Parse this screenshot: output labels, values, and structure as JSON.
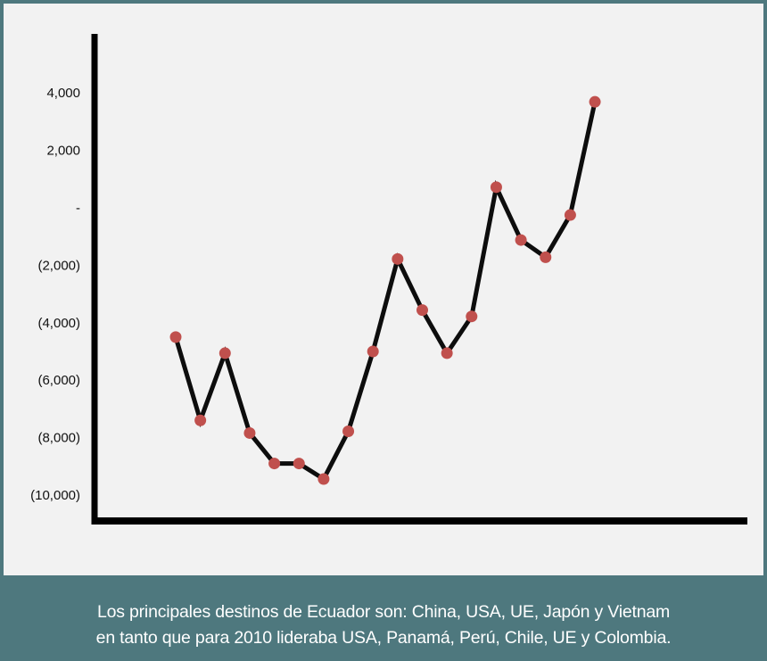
{
  "chart_data": {
    "type": "line",
    "title": "",
    "xlabel": "",
    "ylabel": "",
    "ylim": [
      -11000,
      6000
    ],
    "yticks": [
      {
        "value": 4000,
        "label": "4,000"
      },
      {
        "value": 2000,
        "label": "2,000"
      },
      {
        "value": 0,
        "label": "-"
      },
      {
        "value": -2000,
        "label": "(2,000)"
      },
      {
        "value": -4000,
        "label": "(4,000)"
      },
      {
        "value": -6000,
        "label": "(6,000)"
      },
      {
        "value": -8000,
        "label": "(8,000)"
      },
      {
        "value": -10000,
        "label": "(10,000)"
      }
    ],
    "grid": false,
    "series": [
      {
        "values": [
          -4500,
          -7400,
          -5060,
          -7840,
          -8900,
          -8900,
          -9440,
          -7780,
          -5000,
          -1780,
          -3560,
          -5060,
          -3780,
          720,
          -1120,
          -1720,
          -250,
          3690
        ]
      }
    ],
    "colors": {
      "line": "#0d0d0d",
      "marker": "#c0504d",
      "background": "#f2f2f2",
      "frame": "#4e787e"
    }
  },
  "caption": {
    "line1": "Los principales destinos de Ecuador son: China, USA, UE, Japón y Vietnam",
    "line2": "en tanto que para 2010 lideraba USA, Panamá, Perú, Chile, UE y Colombia."
  }
}
